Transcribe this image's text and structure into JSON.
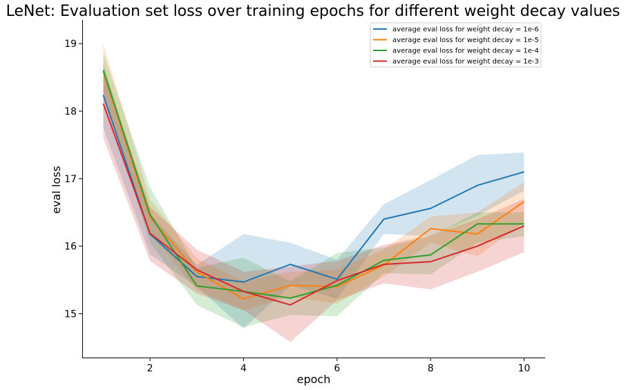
{
  "chart_data": {
    "type": "line",
    "title": "LeNet: Evaluation set loss over training epochs for different weight decay values",
    "xlabel": "epoch",
    "ylabel": "eval loss",
    "xlim": [
      0.55,
      10.45
    ],
    "ylim": [
      14.35,
      19.35
    ],
    "xticks": [
      2,
      4,
      6,
      8,
      10
    ],
    "yticks": [
      15,
      16,
      17,
      18,
      19
    ],
    "grid": false,
    "legend_position": "top-right",
    "x": [
      1,
      2,
      3,
      4,
      5,
      6,
      7,
      8,
      9,
      10
    ],
    "series": [
      {
        "name": "average eval loss for weight decay = 1e-6",
        "color": "#1f77b4",
        "values": [
          18.24,
          16.18,
          15.55,
          15.47,
          15.73,
          15.51,
          16.4,
          16.56,
          16.9,
          17.1
        ],
        "lower": [
          17.75,
          15.88,
          15.4,
          14.78,
          15.42,
          15.22,
          16.18,
          16.15,
          16.45,
          16.82
        ],
        "upper": [
          18.7,
          16.48,
          15.72,
          16.18,
          16.05,
          15.8,
          16.62,
          16.98,
          17.35,
          17.39
        ]
      },
      {
        "name": "average eval loss for weight decay = 1e-5",
        "color": "#ff7f0e",
        "values": [
          18.58,
          16.43,
          15.62,
          15.22,
          15.42,
          15.4,
          15.72,
          16.26,
          16.18,
          16.66
        ],
        "lower": [
          18.15,
          16.2,
          15.35,
          15.05,
          15.25,
          15.15,
          15.55,
          16.05,
          15.85,
          16.35
        ],
        "upper": [
          19.0,
          16.7,
          15.82,
          15.48,
          15.62,
          15.65,
          15.95,
          16.44,
          16.5,
          16.95
        ]
      },
      {
        "name": "average eval loss for weight decay = 1e-4",
        "color": "#2ca02c",
        "values": [
          18.61,
          16.47,
          15.41,
          15.33,
          15.23,
          15.42,
          15.79,
          15.87,
          16.33,
          16.33
        ],
        "lower": [
          18.3,
          16.05,
          15.13,
          14.8,
          14.98,
          14.96,
          15.6,
          15.58,
          16.05,
          16.15
        ],
        "upper": [
          18.86,
          16.87,
          15.68,
          15.83,
          15.48,
          15.9,
          15.98,
          16.15,
          16.5,
          16.5
        ]
      },
      {
        "name": "average eval loss for weight decay = 1e-3",
        "color": "#d62728",
        "values": [
          18.11,
          16.19,
          15.65,
          15.33,
          15.13,
          15.49,
          15.73,
          15.77,
          16.0,
          16.3
        ],
        "lower": [
          17.6,
          15.78,
          15.3,
          15.05,
          14.58,
          15.2,
          15.45,
          15.36,
          15.62,
          15.91
        ],
        "upper": [
          18.6,
          16.58,
          15.95,
          15.62,
          15.7,
          15.78,
          16.02,
          16.16,
          16.4,
          16.7
        ]
      }
    ]
  }
}
